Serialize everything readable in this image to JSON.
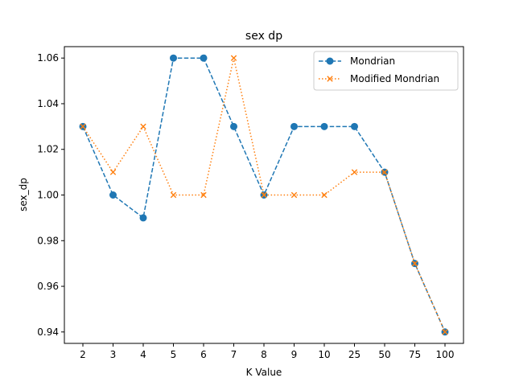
{
  "chart_data": {
    "type": "line",
    "title": "sex dp",
    "xlabel": "K Value",
    "ylabel": "sex_dp",
    "categories": [
      "2",
      "3",
      "4",
      "5",
      "6",
      "7",
      "8",
      "9",
      "10",
      "25",
      "50",
      "75",
      "100"
    ],
    "ylim": [
      0.935,
      1.065
    ],
    "yticks": [
      "0.94",
      "0.96",
      "0.98",
      "1.00",
      "1.02",
      "1.04",
      "1.06"
    ],
    "grid": false,
    "legend_position": "top-right",
    "series": [
      {
        "name": "Mondrian",
        "values": [
          1.03,
          1.0,
          0.99,
          1.06,
          1.06,
          1.03,
          1.0,
          1.03,
          1.03,
          1.03,
          1.01,
          0.97,
          0.94
        ],
        "color": "#1f77b4",
        "linestyle": "dashed",
        "marker": "circle"
      },
      {
        "name": "Modified Mondrian",
        "values": [
          1.03,
          1.01,
          1.03,
          1.0,
          1.0,
          1.06,
          1.0,
          1.0,
          1.0,
          1.01,
          1.01,
          0.97,
          0.94
        ],
        "color": "#ff7f0e",
        "linestyle": "dotted",
        "marker": "x"
      }
    ]
  }
}
